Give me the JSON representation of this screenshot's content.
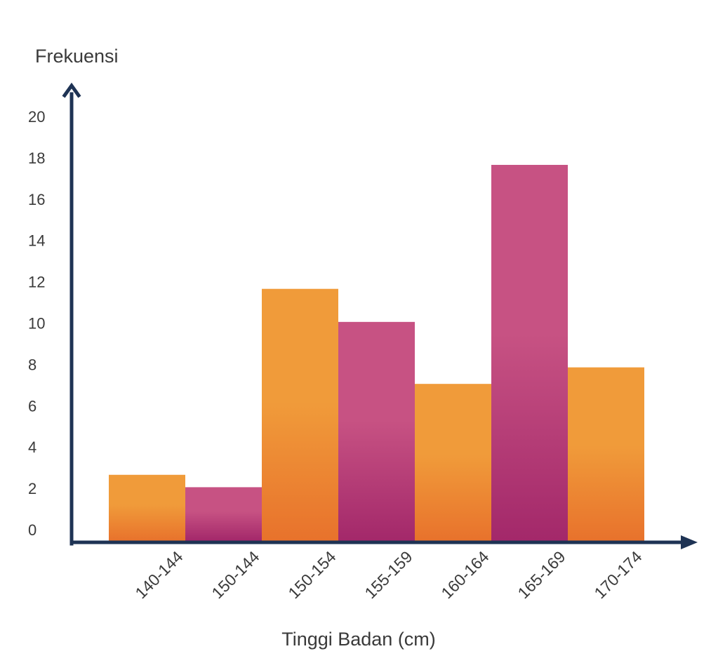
{
  "chart_data": {
    "type": "bar",
    "title": "",
    "ylabel": "Frekuensi",
    "xlabel": "Tinggi Badan (cm)",
    "categories": [
      "140-144",
      "150-144",
      "150-154",
      "155-159",
      "160-164",
      "165-169",
      "170-174"
    ],
    "values": [
      3.2,
      2.6,
      12.2,
      10.6,
      7.6,
      18.2,
      8.4
    ],
    "ylim": [
      0,
      20
    ],
    "yticks": [
      "0",
      "2",
      "4",
      "6",
      "8",
      "10",
      "12",
      "14",
      "16",
      "18",
      "20"
    ],
    "grid": false,
    "legend": "none",
    "bar_colors": [
      "orange",
      "magenta",
      "orange",
      "magenta",
      "orange",
      "magenta",
      "orange"
    ],
    "colors": {
      "orange_top": "#f09b3a",
      "orange_bottom": "#e8722c",
      "magenta_top": "#c75283",
      "magenta_bottom": "#a3286a",
      "axis": "#1e3354",
      "text": "#3a3a3a"
    }
  }
}
